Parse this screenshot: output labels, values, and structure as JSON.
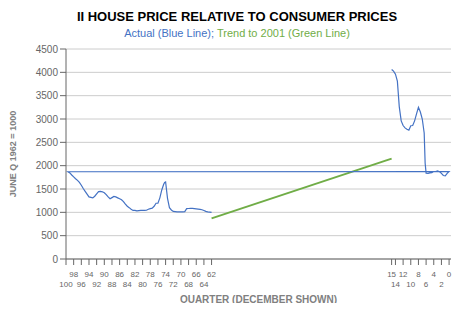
{
  "chart_data": {
    "type": "line",
    "title": "II HOUSE PRICE RELATIVE TO CONSUMER PRICES",
    "title_color": "#000000",
    "subtitle": [
      {
        "text": "Actual (Blue Line); ",
        "color": "#4472C4"
      },
      {
        "text": "Trend to 2001 (Green Line)",
        "color": "#70AD47"
      }
    ],
    "x_label": "QUARTER (DECEMBER SHOWN)",
    "y_label": "JUNE Q 1962 = 1000",
    "xlim": [
      100,
      -0.5
    ],
    "xticks": [
      62,
      64,
      66,
      68,
      70,
      72,
      74,
      76,
      78,
      80,
      82,
      84,
      86,
      88,
      90,
      92,
      94,
      96,
      98,
      100,
      0,
      2,
      4,
      6,
      8,
      10,
      12,
      14,
      15
    ],
    "ylim": [
      0,
      4500
    ],
    "yticks": [
      0,
      500,
      1000,
      1500,
      2000,
      2500,
      3000,
      3500,
      4000,
      4500
    ],
    "grid": true,
    "series": [
      {
        "color": "#70AD47",
        "x": [
          62,
          15
        ],
        "values": [
          870,
          2150
        ]
      },
      {
        "color": "#4472C4",
        "x": [
          62,
          62.5,
          63,
          63.5,
          64,
          64.5,
          65,
          65.5,
          66,
          66.5,
          67,
          67.5,
          68,
          68.5,
          69,
          69.5,
          70,
          70.5,
          71,
          71.5,
          72,
          72.5,
          73,
          73.5,
          74,
          74.25,
          74.5,
          75,
          75.5,
          76,
          76.5,
          77,
          77.5,
          78,
          78.5,
          79,
          79.5,
          80,
          80.5,
          81,
          81.5,
          82,
          82.5,
          83,
          83.5,
          84,
          84.5,
          85,
          85.5,
          86,
          86.5,
          87,
          87.5,
          88,
          88.5,
          89,
          89.5,
          90,
          90.5,
          91,
          91.5,
          92,
          92.5,
          93,
          93.5,
          94,
          94.5,
          95,
          95.5,
          96,
          96.5,
          97,
          97.5,
          98,
          98.5,
          99,
          99.5,
          0,
          0.5,
          1,
          1.5,
          2,
          2.5,
          3,
          3.5,
          4,
          4.5,
          5,
          5.5,
          6,
          6.25,
          6.5,
          7,
          7.5,
          8,
          8.5,
          9,
          9.5,
          10,
          10.5,
          11,
          11.5,
          12,
          12.5,
          13,
          13.5,
          14,
          14.5,
          15
        ],
        "values": [
          1000,
          1005,
          1010,
          1020,
          1040,
          1055,
          1065,
          1070,
          1075,
          1080,
          1085,
          1085,
          1082,
          1080,
          1015,
          1010,
          1010,
          1010,
          1010,
          1015,
          1020,
          1050,
          1100,
          1300,
          1650,
          1640,
          1600,
          1480,
          1310,
          1195,
          1195,
          1130,
          1090,
          1080,
          1065,
          1045,
          1040,
          1040,
          1040,
          1035,
          1030,
          1040,
          1040,
          1065,
          1100,
          1130,
          1175,
          1230,
          1270,
          1290,
          1310,
          1330,
          1340,
          1315,
          1290,
          1330,
          1380,
          1420,
          1440,
          1450,
          1445,
          1395,
          1345,
          1310,
          1320,
          1330,
          1390,
          1450,
          1510,
          1580,
          1640,
          1685,
          1720,
          1760,
          1800,
          1845,
          1870,
          1875,
          1835,
          1780,
          1790,
          1835,
          1870,
          1890,
          1875,
          1875,
          1850,
          1845,
          1835,
          1840,
          2050,
          2700,
          3000,
          3150,
          3250,
          3110,
          2960,
          2860,
          2855,
          2760,
          2780,
          2810,
          2860,
          2960,
          3260,
          3810,
          3960,
          4025,
          4060
        ]
      }
    ]
  }
}
